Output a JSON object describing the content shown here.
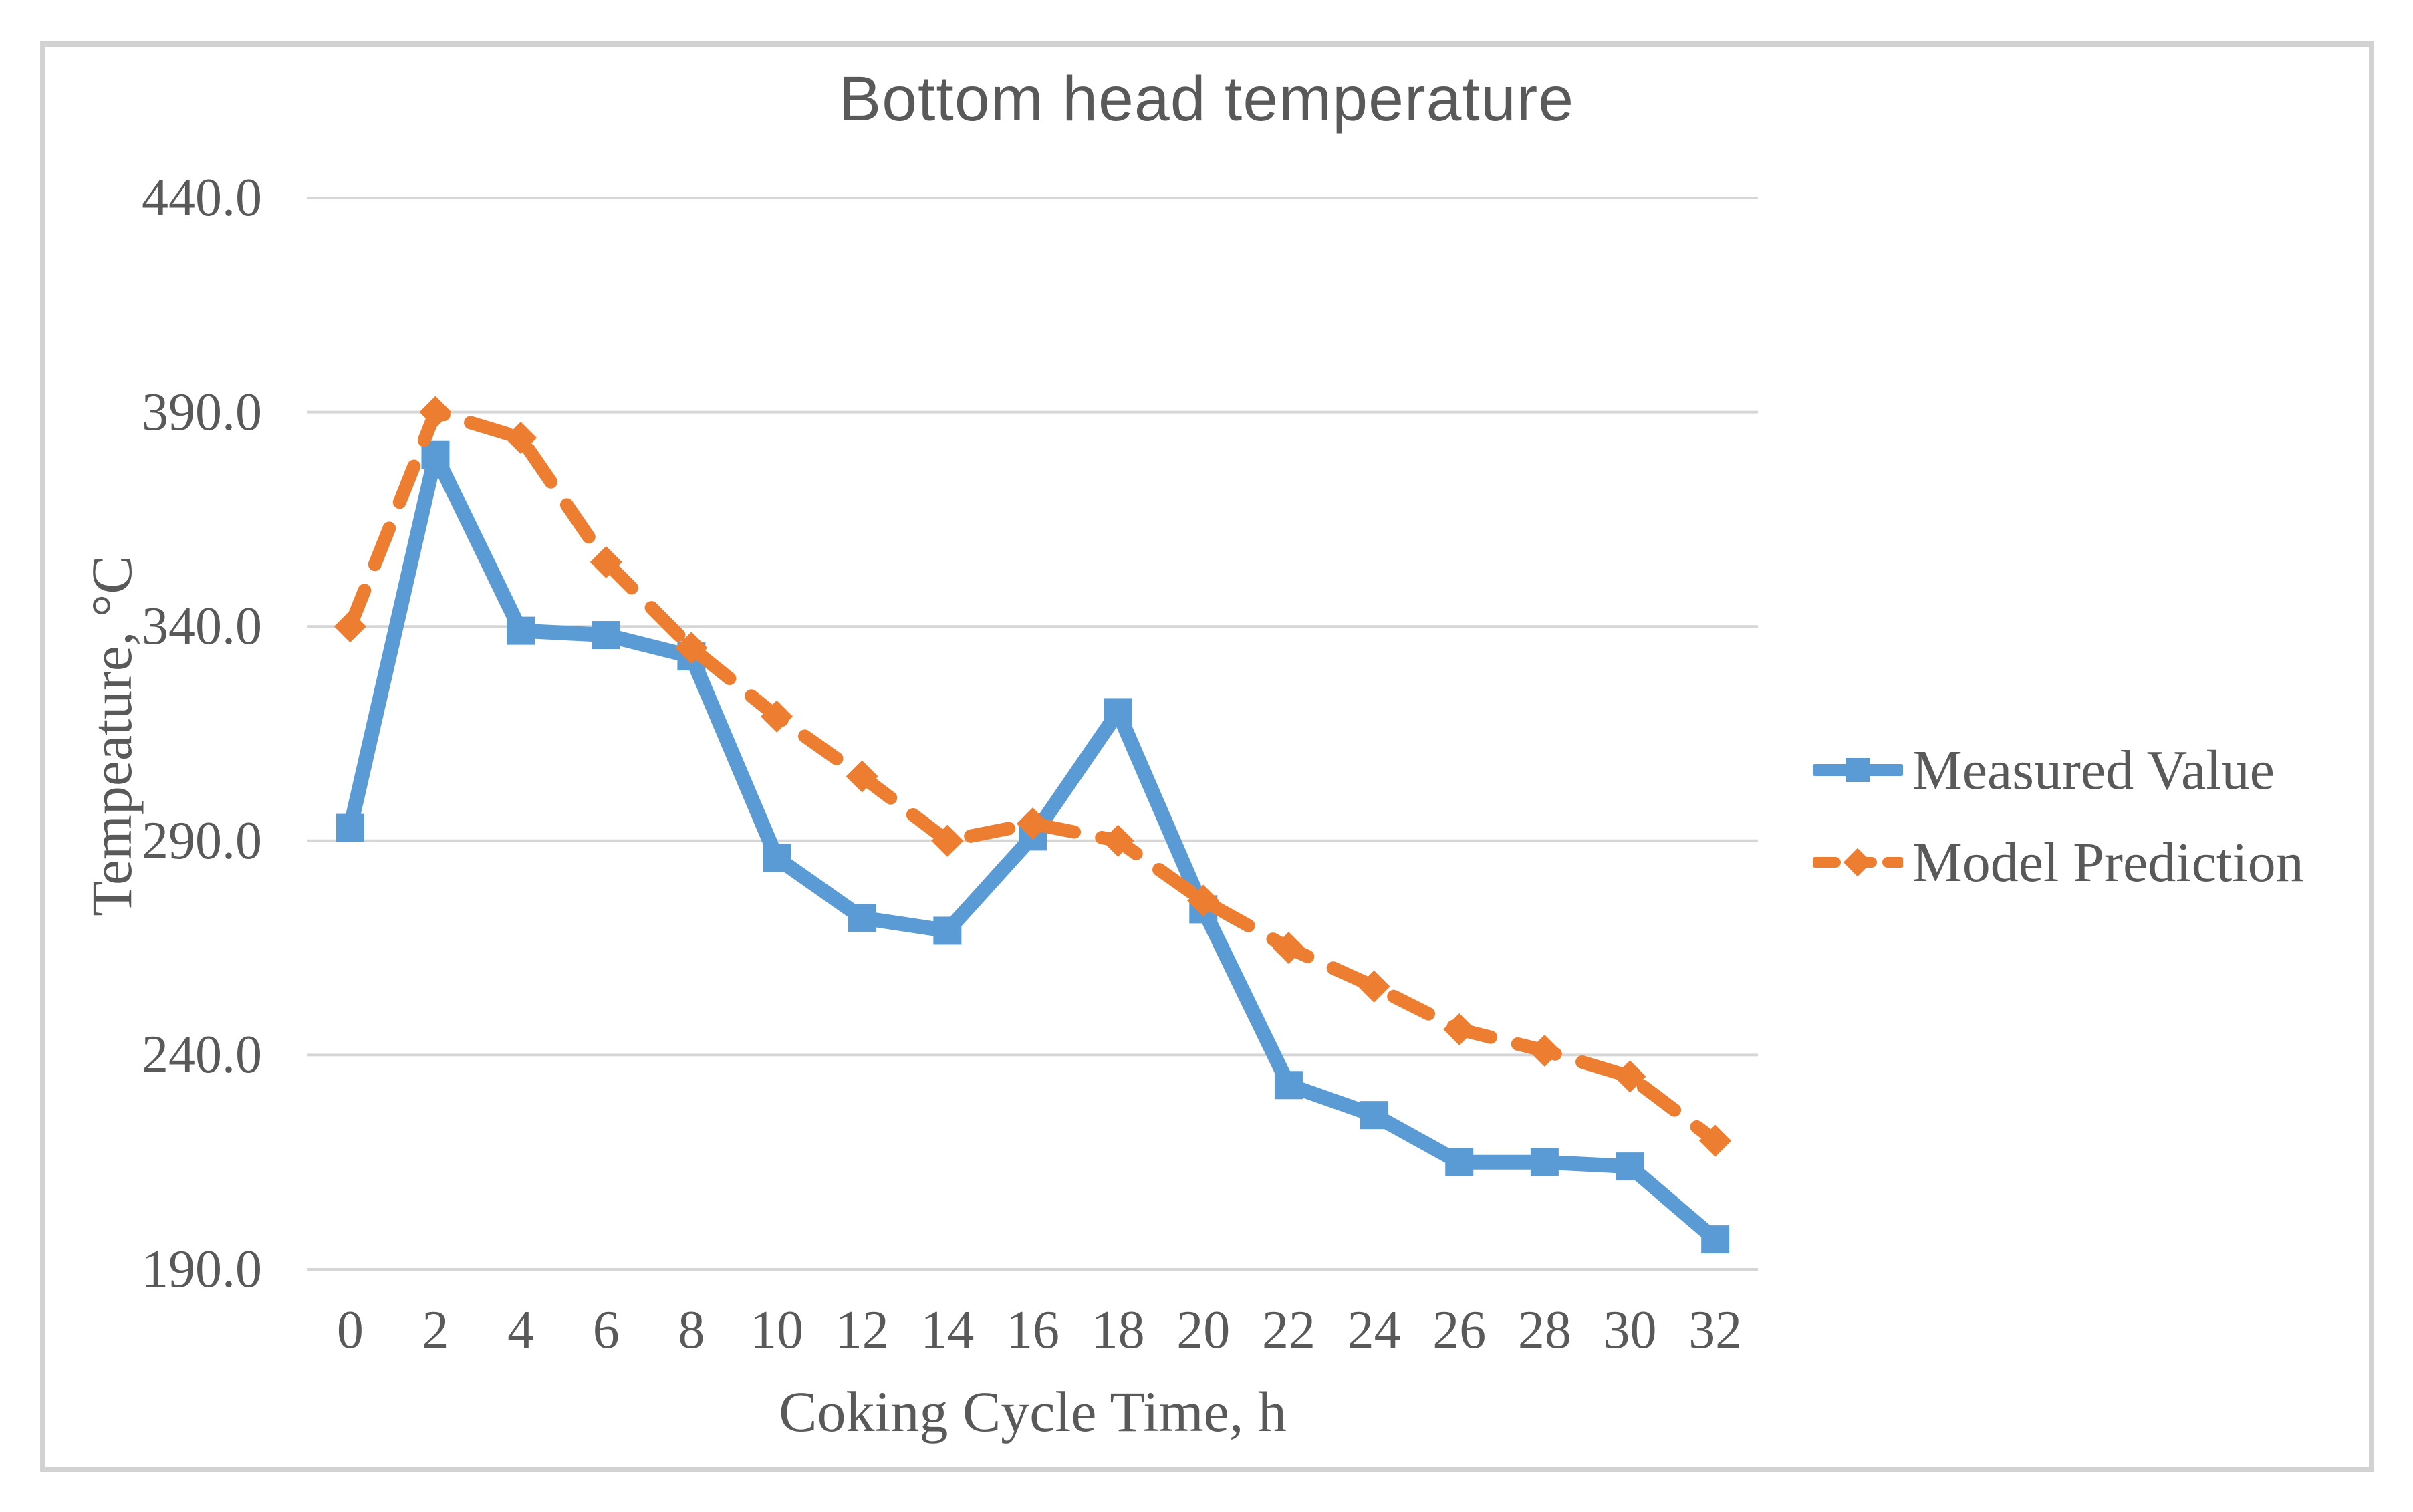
{
  "figure": {
    "background_color": "#ffffff",
    "border_color": "#d2d2d2",
    "text_color": "#595959",
    "gridline_color": "#d6d6d6"
  },
  "chart_data": {
    "type": "line",
    "title": "Bottom head temperature",
    "xlabel": "Coking Cycle Time, h",
    "ylabel": "Tempeature, °C",
    "x": [
      0,
      2,
      4,
      6,
      8,
      10,
      12,
      14,
      16,
      18,
      20,
      22,
      24,
      26,
      28,
      30,
      32
    ],
    "series": [
      {
        "name": "Measured Value",
        "color": "#5B9BD5",
        "marker": "square",
        "line_style": "solid",
        "values": [
          293,
          380,
          339,
          338,
          333,
          286,
          272,
          269,
          291,
          320,
          274,
          233,
          226,
          215,
          215,
          214,
          197
        ]
      },
      {
        "name": "Model Prediction",
        "color": "#ED7D31",
        "marker": "diamond",
        "line_style": "dashed",
        "values": [
          340,
          390,
          384,
          355,
          335,
          319,
          305,
          290,
          294,
          290,
          276,
          265,
          256,
          246,
          241,
          235,
          220
        ]
      }
    ],
    "ylim": [
      190,
      440
    ],
    "ytick_step": 50,
    "ytick_decimals": 1,
    "xtick_labels": [
      "0",
      "2",
      "4",
      "6",
      "8",
      "10",
      "12",
      "14",
      "16",
      "18",
      "20",
      "22",
      "24",
      "26",
      "28",
      "30",
      "32"
    ],
    "ytick_labels": [
      "440.0",
      "390.0",
      "340.0",
      "290.0",
      "240.0",
      "190.0"
    ],
    "grid": "horizontal",
    "legend_position": "right"
  }
}
